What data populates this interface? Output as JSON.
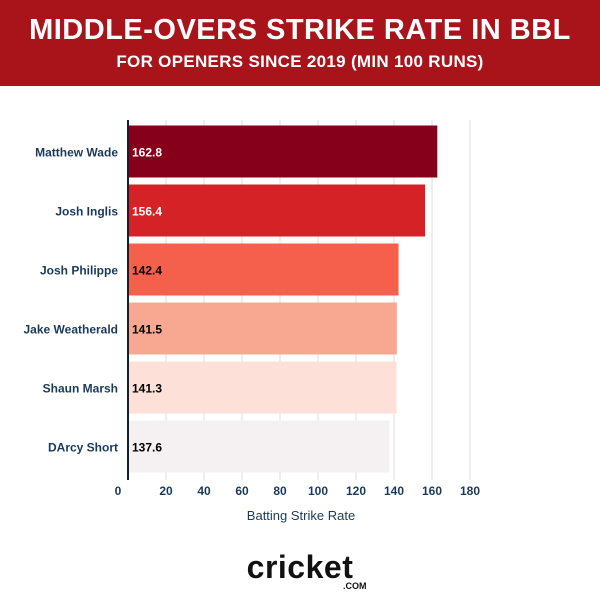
{
  "header": {
    "title": "MIDDLE-OVERS STRIKE RATE IN BBL",
    "subtitle": "FOR OPENERS SINCE 2019 (MIN 100 RUNS)"
  },
  "chart_data": {
    "type": "bar",
    "orientation": "horizontal",
    "categories": [
      "Matthew Wade",
      "Josh Inglis",
      "Josh Philippe",
      "Jake Weatherald",
      "Shaun Marsh",
      "DArcy Short"
    ],
    "values": [
      162.8,
      156.4,
      142.4,
      141.5,
      141.3,
      137.6
    ],
    "data_labels": [
      "162.8",
      "156.4",
      "142.4",
      "141.5",
      "141.3",
      "137.6"
    ],
    "bar_colors": [
      "#87001b",
      "#d42226",
      "#f5604c",
      "#f8a890",
      "#fde0d8",
      "#f5f0f1"
    ],
    "label_colors": [
      "#ffffff",
      "#ffffff",
      "#000000",
      "#000000",
      "#000000",
      "#000000"
    ],
    "xlabel": "Batting Strike Rate",
    "xlim": [
      0,
      180
    ],
    "xticks": [
      0,
      20,
      40,
      60,
      80,
      100,
      120,
      140,
      160,
      180
    ],
    "grid": true
  },
  "logo": {
    "text_main": "cricket",
    "text_sub": ".COM"
  },
  "colors": {
    "banner": "#a8141a",
    "axis_text": "#1a3a5c",
    "grid": "#dddddd"
  }
}
